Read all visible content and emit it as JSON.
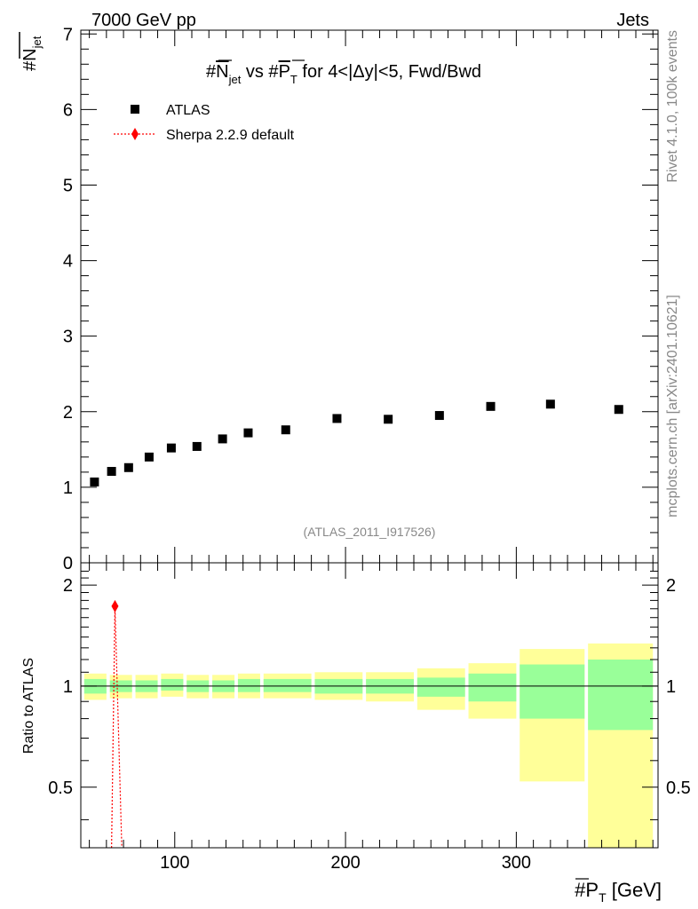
{
  "header": {
    "energy_label": "7000 GeV pp",
    "category_label": "Jets"
  },
  "side": {
    "rivet_label": "Rivet 4.1.0,  100k events",
    "mcplots_label": "mcplots.cern.ch [arXiv:2401.10621]"
  },
  "chart_data": {
    "type": "scatter",
    "title": "#N_jet vs #P_T for 4<|Δy|<5, Fwd/Bwd",
    "title_parts": {
      "p1": "#",
      "n": "N",
      "jet": "jet",
      "p2": " vs #",
      "p": "P",
      "t": "T",
      "p3": " for 4<|Δy|<5, Fwd/Bwd"
    },
    "analysis_label": "(ATLAS_2011_I917526)",
    "xlabel": {
      "hash": "#",
      "p": "P",
      "t": "T",
      "unit": " [GeV]"
    },
    "ylabel": {
      "hash": "#",
      "n": "N",
      "jet": "jet"
    },
    "ratio_ylabel": "Ratio to ATLAS",
    "xlim": [
      45,
      383
    ],
    "ylim": [
      0,
      7.05
    ],
    "ratio_ylim": [
      0.33,
      2.33
    ],
    "x_ticks": [
      "100",
      "200",
      "300"
    ],
    "y_ticks": [
      "0",
      "1",
      "2",
      "3",
      "4",
      "5",
      "6",
      "7"
    ],
    "ratio_ticks": [
      "0.5",
      "1",
      "2"
    ],
    "legend": {
      "atlas": "ATLAS",
      "sherpa": "Sherpa 2.2.9 default"
    },
    "atlas": {
      "x": [
        53,
        63,
        73,
        85,
        98,
        113,
        128,
        143,
        165,
        195,
        225,
        255,
        285,
        320,
        360
      ],
      "y": [
        1.07,
        1.21,
        1.26,
        1.4,
        1.52,
        1.54,
        1.64,
        1.72,
        1.76,
        1.91,
        1.9,
        1.95,
        2.07,
        2.1,
        2.03
      ]
    },
    "bins": [
      45,
      60,
      75,
      90,
      105,
      120,
      135,
      150,
      180,
      210,
      240,
      270,
      300,
      340,
      380
    ],
    "band_green_lo": [
      0.95,
      0.96,
      0.96,
      0.97,
      0.96,
      0.96,
      0.96,
      0.96,
      0.95,
      0.95,
      0.93,
      0.9,
      0.8,
      0.74
    ],
    "band_green_hi": [
      1.05,
      1.04,
      1.04,
      1.05,
      1.04,
      1.04,
      1.05,
      1.05,
      1.05,
      1.05,
      1.06,
      1.09,
      1.16,
      1.2
    ],
    "band_yellow_lo": [
      0.91,
      0.92,
      0.92,
      0.93,
      0.92,
      0.92,
      0.92,
      0.92,
      0.91,
      0.9,
      0.85,
      0.8,
      0.52,
      0.3
    ],
    "band_yellow_hi": [
      1.09,
      1.08,
      1.08,
      1.09,
      1.08,
      1.08,
      1.09,
      1.09,
      1.1,
      1.1,
      1.13,
      1.17,
      1.29,
      1.34
    ],
    "sherpa_ratio": {
      "x": [
        63,
        65,
        69
      ],
      "y": [
        0.3,
        1.73,
        0.3
      ],
      "marker_index": 1
    },
    "colors": {
      "green": "#99ff99",
      "yellow": "#ffff99",
      "sherpa": "#ff0000",
      "data": "#000000"
    }
  }
}
